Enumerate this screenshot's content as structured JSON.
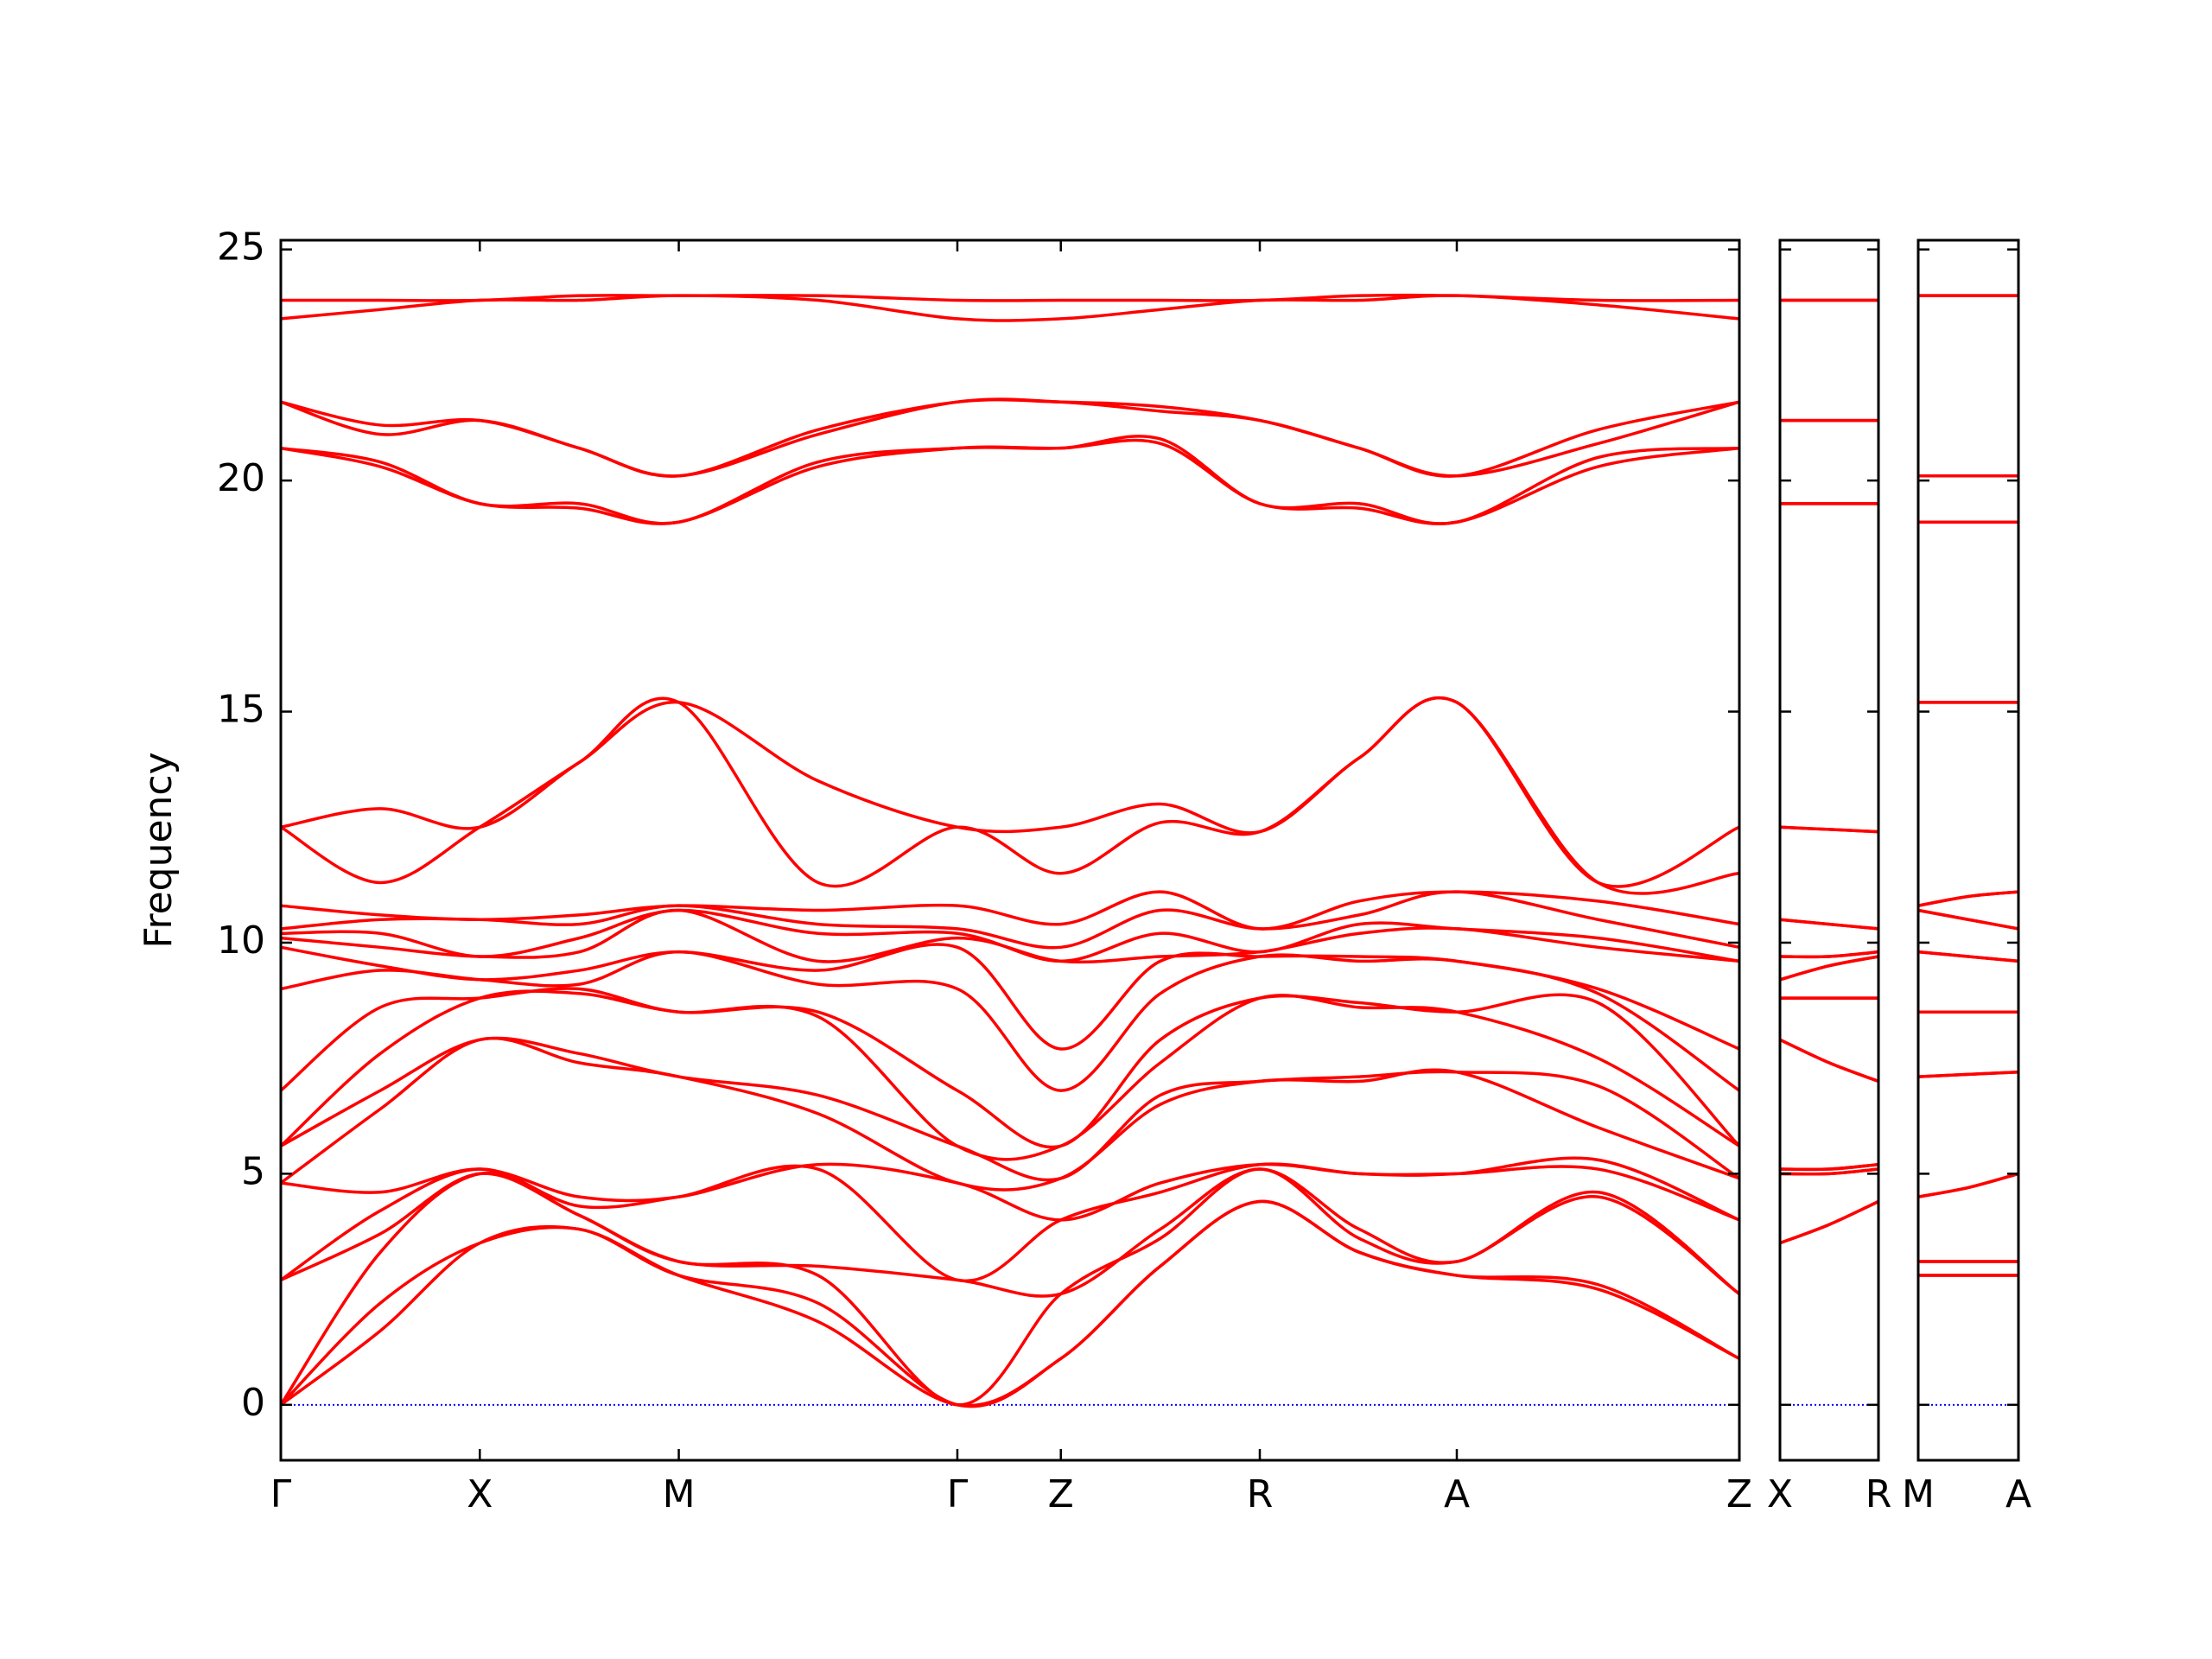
{
  "chart_data": [
    {
      "type": "line",
      "ylabel": "Frequency",
      "color": "#ff0000",
      "x": [
        0,
        0.5,
        1,
        1.5,
        2,
        2.7,
        3.4,
        3.92,
        4.42,
        4.92,
        5.42,
        5.91,
        6.62,
        7.33
      ],
      "xlim": [
        0,
        7.33
      ],
      "xticks": [
        {
          "value": 0,
          "label": "Γ"
        },
        {
          "value": 1,
          "label": "X"
        },
        {
          "value": 2,
          "label": "M"
        },
        {
          "value": 3.4,
          "label": "Γ"
        },
        {
          "value": 3.92,
          "label": "Z"
        },
        {
          "value": 4.92,
          "label": "R"
        },
        {
          "value": 5.91,
          "label": "A"
        },
        {
          "value": 7.33,
          "label": "Z"
        }
      ],
      "ylim": [
        -1.2,
        25.2
      ],
      "yticks": [
        0,
        5,
        10,
        15,
        20,
        25
      ],
      "hline": 0,
      "hline_color": "#0000ff",
      "series": [
        {
          "values": [
            0,
            1.6,
            3.5,
            3.8,
            2.8,
            1.8,
            0,
            1.0,
            3.0,
            4.4,
            3.3,
            2.8,
            2.5,
            1.0
          ]
        },
        {
          "values": [
            0,
            2.2,
            3.5,
            3.8,
            2.8,
            2.2,
            0,
            1.0,
            3.0,
            4.4,
            3.3,
            2.8,
            2.6,
            1.0
          ]
        },
        {
          "values": [
            0,
            3.3,
            5.0,
            4.1,
            3.1,
            2.8,
            0,
            2.4,
            3.6,
            5.1,
            3.6,
            3.1,
            4.5,
            2.4
          ]
        },
        {
          "values": [
            2.7,
            3.7,
            5.0,
            4.1,
            3.1,
            3.0,
            2.7,
            2.4,
            3.8,
            5.1,
            3.8,
            3.1,
            4.6,
            2.4
          ]
        },
        {
          "values": [
            2.7,
            4.2,
            5.1,
            4.3,
            4.5,
            5.1,
            2.7,
            4.0,
            4.6,
            5.2,
            5.0,
            5.0,
            5.1,
            4.0
          ]
        },
        {
          "values": [
            4.8,
            4.6,
            5.1,
            4.5,
            4.5,
            5.2,
            4.8,
            4.0,
            4.8,
            5.2,
            5.0,
            5.0,
            5.3,
            4.0
          ]
        },
        {
          "values": [
            4.8,
            6.4,
            7.9,
            7.4,
            7.1,
            6.3,
            4.8,
            4.9,
            6.5,
            7.0,
            7.0,
            7.2,
            6.0,
            4.9
          ]
        },
        {
          "values": [
            5.6,
            6.8,
            7.9,
            7.6,
            7.1,
            6.7,
            5.6,
            4.9,
            6.7,
            7.0,
            7.1,
            7.2,
            6.9,
            4.9
          ]
        },
        {
          "values": [
            5.6,
            7.6,
            8.8,
            8.9,
            8.5,
            8.4,
            5.6,
            5.6,
            7.4,
            8.8,
            8.6,
            8.5,
            7.5,
            5.6
          ]
        },
        {
          "values": [
            6.8,
            8.6,
            8.8,
            9.0,
            8.5,
            8.5,
            6.8,
            5.6,
            7.9,
            8.8,
            8.7,
            8.5,
            8.7,
            5.6
          ]
        },
        {
          "values": [
            9.0,
            9.4,
            9.2,
            9.1,
            9.8,
            9.1,
            9.0,
            6.8,
            8.9,
            9.7,
            9.6,
            9.6,
            8.9,
            6.8
          ]
        },
        {
          "values": [
            9.9,
            9.5,
            9.2,
            9.4,
            9.8,
            9.4,
            9.9,
            7.7,
            9.6,
            9.7,
            9.7,
            9.6,
            9.0,
            7.7
          ]
        },
        {
          "values": [
            10.1,
            9.9,
            9.7,
            9.8,
            10.7,
            9.6,
            10.1,
            9.6,
            9.7,
            9.8,
            10.2,
            10.3,
            9.9,
            9.6
          ]
        },
        {
          "values": [
            10.2,
            10.2,
            9.7,
            10.1,
            10.7,
            10.2,
            10.2,
            9.6,
            10.2,
            9.8,
            10.4,
            10.3,
            10.1,
            9.6
          ]
        },
        {
          "values": [
            10.3,
            10.5,
            10.5,
            10.4,
            10.8,
            10.4,
            10.3,
            9.9,
            10.7,
            10.3,
            10.6,
            11.1,
            10.5,
            9.9
          ]
        },
        {
          "values": [
            10.8,
            10.6,
            10.5,
            10.6,
            10.8,
            10.7,
            10.8,
            10.4,
            11.1,
            10.3,
            10.9,
            11.1,
            10.9,
            10.4
          ]
        },
        {
          "values": [
            12.5,
            11.3,
            12.5,
            13.9,
            15.2,
            11.3,
            12.5,
            11.5,
            12.6,
            12.4,
            14.0,
            15.2,
            11.3,
            11.5
          ]
        },
        {
          "values": [
            12.5,
            12.9,
            12.5,
            13.9,
            15.2,
            13.5,
            12.5,
            12.5,
            13.0,
            12.4,
            14.0,
            15.2,
            11.3,
            12.5
          ]
        },
        {
          "values": [
            20.7,
            20.3,
            19.5,
            19.4,
            19.1,
            20.3,
            20.7,
            20.7,
            20.8,
            19.5,
            19.4,
            19.1,
            20.3,
            20.7
          ]
        },
        {
          "values": [
            20.7,
            20.4,
            19.5,
            19.5,
            19.1,
            20.4,
            20.7,
            20.7,
            20.9,
            19.5,
            19.5,
            19.1,
            20.5,
            20.7
          ]
        },
        {
          "values": [
            21.7,
            21.0,
            21.3,
            20.7,
            20.1,
            21.0,
            21.7,
            21.7,
            21.5,
            21.3,
            20.7,
            20.1,
            20.8,
            21.7
          ]
        },
        {
          "values": [
            21.7,
            21.2,
            21.3,
            20.7,
            20.1,
            21.1,
            21.7,
            21.7,
            21.6,
            21.3,
            20.7,
            20.1,
            21.1,
            21.7
          ]
        },
        {
          "values": [
            23.5,
            23.7,
            23.9,
            23.9,
            24.0,
            23.9,
            23.5,
            23.5,
            23.7,
            23.9,
            23.9,
            24.0,
            23.8,
            23.5
          ]
        },
        {
          "values": [
            23.9,
            23.9,
            23.9,
            24.0,
            24.0,
            24.0,
            23.9,
            23.9,
            23.9,
            23.9,
            24.0,
            24.0,
            23.9,
            23.9
          ]
        }
      ]
    },
    {
      "type": "line",
      "color": "#ff0000",
      "x": [
        0,
        0.25,
        0.5
      ],
      "xlim": [
        0,
        0.5
      ],
      "xticks": [
        {
          "value": 0,
          "label": "X"
        },
        {
          "value": 0.5,
          "label": "R"
        }
      ],
      "ylim": [
        -1.2,
        25.2
      ],
      "yticks": [
        0,
        5,
        10,
        15,
        20,
        25
      ],
      "hline": 0,
      "hline_color": "#0000ff",
      "series": [
        {
          "values": [
            3.5,
            3.9,
            4.4
          ]
        },
        {
          "values": [
            3.5,
            3.9,
            4.4
          ]
        },
        {
          "values": [
            5.0,
            5.0,
            5.1
          ]
        },
        {
          "values": [
            5.0,
            5.0,
            5.1
          ]
        },
        {
          "values": [
            5.1,
            5.1,
            5.2
          ]
        },
        {
          "values": [
            5.1,
            5.1,
            5.2
          ]
        },
        {
          "values": [
            7.9,
            7.4,
            7.0
          ]
        },
        {
          "values": [
            7.9,
            7.4,
            7.0
          ]
        },
        {
          "values": [
            8.8,
            8.8,
            8.8
          ]
        },
        {
          "values": [
            8.8,
            8.8,
            8.8
          ]
        },
        {
          "values": [
            9.2,
            9.5,
            9.7
          ]
        },
        {
          "values": [
            9.2,
            9.5,
            9.7
          ]
        },
        {
          "values": [
            9.7,
            9.7,
            9.8
          ]
        },
        {
          "values": [
            9.7,
            9.7,
            9.8
          ]
        },
        {
          "values": [
            10.5,
            10.4,
            10.3
          ]
        },
        {
          "values": [
            10.5,
            10.4,
            10.3
          ]
        },
        {
          "values": [
            12.5,
            12.45,
            12.4
          ]
        },
        {
          "values": [
            12.5,
            12.45,
            12.4
          ]
        },
        {
          "values": [
            19.5,
            19.5,
            19.5
          ]
        },
        {
          "values": [
            19.5,
            19.5,
            19.5
          ]
        },
        {
          "values": [
            21.3,
            21.3,
            21.3
          ]
        },
        {
          "values": [
            21.3,
            21.3,
            21.3
          ]
        },
        {
          "values": [
            23.9,
            23.9,
            23.9
          ]
        },
        {
          "values": [
            23.9,
            23.9,
            23.9
          ]
        }
      ]
    },
    {
      "type": "line",
      "color": "#ff0000",
      "x": [
        0,
        0.25,
        0.5
      ],
      "xlim": [
        0,
        0.5
      ],
      "xticks": [
        {
          "value": 0,
          "label": "M"
        },
        {
          "value": 0.5,
          "label": "A"
        }
      ],
      "ylim": [
        -1.2,
        25.2
      ],
      "yticks": [
        0,
        5,
        10,
        15,
        20,
        25
      ],
      "hline": 0,
      "hline_color": "#0000ff",
      "series": [
        {
          "values": [
            2.8,
            2.8,
            2.8
          ]
        },
        {
          "values": [
            2.8,
            2.8,
            2.8
          ]
        },
        {
          "values": [
            3.1,
            3.1,
            3.1
          ]
        },
        {
          "values": [
            3.1,
            3.1,
            3.1
          ]
        },
        {
          "values": [
            4.5,
            4.7,
            5.0
          ]
        },
        {
          "values": [
            4.5,
            4.7,
            5.0
          ]
        },
        {
          "values": [
            7.1,
            7.15,
            7.2
          ]
        },
        {
          "values": [
            7.1,
            7.15,
            7.2
          ]
        },
        {
          "values": [
            8.5,
            8.5,
            8.5
          ]
        },
        {
          "values": [
            8.5,
            8.5,
            8.5
          ]
        },
        {
          "values": [
            9.8,
            9.7,
            9.6
          ]
        },
        {
          "values": [
            9.8,
            9.7,
            9.6
          ]
        },
        {
          "values": [
            10.7,
            10.5,
            10.3
          ]
        },
        {
          "values": [
            10.7,
            10.5,
            10.3
          ]
        },
        {
          "values": [
            10.8,
            11.0,
            11.1
          ]
        },
        {
          "values": [
            10.8,
            11.0,
            11.1
          ]
        },
        {
          "values": [
            15.2,
            15.2,
            15.2
          ]
        },
        {
          "values": [
            15.2,
            15.2,
            15.2
          ]
        },
        {
          "values": [
            19.1,
            19.1,
            19.1
          ]
        },
        {
          "values": [
            19.1,
            19.1,
            19.1
          ]
        },
        {
          "values": [
            20.1,
            20.1,
            20.1
          ]
        },
        {
          "values": [
            20.1,
            20.1,
            20.1
          ]
        },
        {
          "values": [
            24.0,
            24.0,
            24.0
          ]
        },
        {
          "values": [
            24.0,
            24.0,
            24.0
          ]
        }
      ]
    }
  ]
}
